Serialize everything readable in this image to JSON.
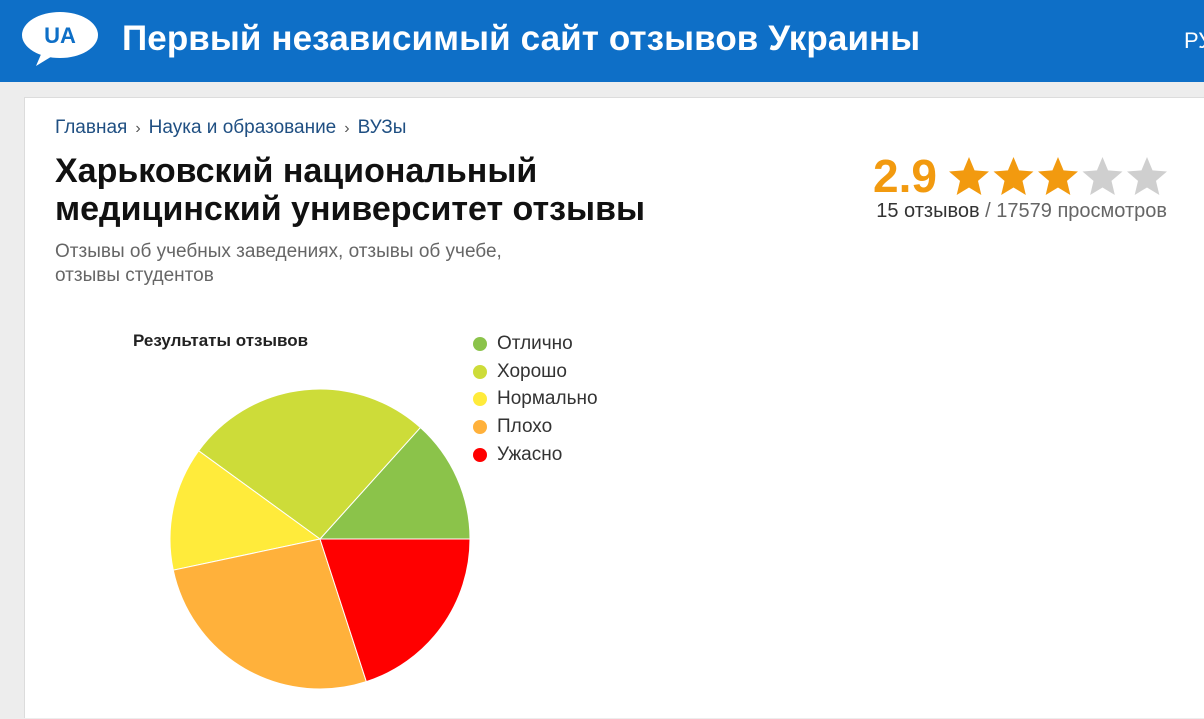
{
  "header": {
    "logo_text": "UA",
    "site_title": "Первый независимый сайт отзывов Украины",
    "language": "РУ"
  },
  "breadcrumb": {
    "items": [
      "Главная",
      "Наука и образование",
      "ВУЗы"
    ],
    "separator": "›"
  },
  "page": {
    "title_line1": "Харьковский национальный",
    "title_line2": "медицинский университет отзывы",
    "subtitle_line1": "Отзывы об учебных заведениях, отзывы об учебе,",
    "subtitle_line2": "отзывы студентов"
  },
  "rating": {
    "score": "2.9",
    "stars_filled": 3,
    "stars_total": 5,
    "reviews_text": "15 отзывов",
    "views_separator": "/",
    "views_text": "17579 просмотров",
    "star_color": "#f29a0f",
    "star_empty_color": "#cfcfcf"
  },
  "chart_data": {
    "type": "pie",
    "title": "Результаты отзывов",
    "legend_position": "right",
    "categories": [
      "Отлично",
      "Хорошо",
      "Нормально",
      "Плохо",
      "Ужасно"
    ],
    "values": [
      2,
      4,
      2,
      4,
      3
    ],
    "colors": [
      "#8bc34a",
      "#cddc39",
      "#ffeb3b",
      "#ffb13b",
      "#ff0000"
    ]
  }
}
